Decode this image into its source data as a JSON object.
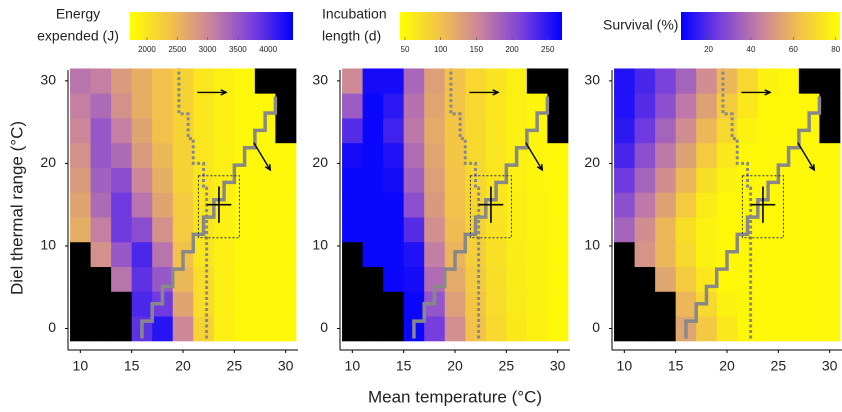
{
  "chart_data": [
    {
      "type": "heatmap",
      "ylabel": "Diel thermal range (°C)",
      "colorbar_label": [
        "Energy",
        "expended (J)"
      ],
      "x": [
        10,
        12,
        14,
        16,
        18,
        20,
        22,
        24,
        26,
        28,
        30
      ],
      "y": [
        0,
        3,
        6,
        9,
        12,
        15,
        18,
        21,
        24,
        27,
        30
      ],
      "z": [
        [
          null,
          null,
          null,
          3900,
          4200,
          3000,
          2200,
          1900,
          1800,
          1800,
          1800
        ],
        [
          null,
          null,
          null,
          4000,
          3800,
          2700,
          2100,
          1900,
          1800,
          1800,
          1800
        ],
        [
          null,
          null,
          3200,
          3900,
          3500,
          2500,
          2100,
          1900,
          1800,
          1800,
          1800
        ],
        [
          null,
          2900,
          3500,
          4000,
          3200,
          2400,
          2000,
          1900,
          1800,
          1800,
          1800
        ],
        [
          2600,
          3100,
          3800,
          3600,
          2900,
          2300,
          2000,
          1900,
          1800,
          1800,
          1800
        ],
        [
          2700,
          3300,
          3800,
          3200,
          2700,
          2300,
          2000,
          1900,
          1800,
          1800,
          1800
        ],
        [
          2800,
          3400,
          3600,
          3000,
          2600,
          2200,
          2000,
          1900,
          1800,
          1800,
          1800
        ],
        [
          2900,
          3500,
          3300,
          2800,
          2500,
          2200,
          2000,
          1900,
          1800,
          1800,
          1800
        ],
        [
          3000,
          3500,
          3100,
          2700,
          2400,
          2200,
          2000,
          1900,
          1800,
          1800,
          null
        ],
        [
          3100,
          3300,
          2900,
          2600,
          2400,
          2200,
          2000,
          1900,
          1800,
          1800,
          null
        ],
        [
          3200,
          3100,
          2800,
          2600,
          2400,
          2200,
          2000,
          1900,
          1800,
          null,
          null
        ]
      ],
      "clim": [
        1720,
        4410
      ],
      "cticks": [
        2000,
        2500,
        3000,
        3500,
        4000
      ],
      "colormap": [
        "#ffff00",
        "#f2c24a",
        "#c882a0",
        "#7a40dc",
        "#0000ff"
      ],
      "missing_color": "#000000",
      "xlim": [
        8.8,
        31.2
      ],
      "ylim": [
        -2.6,
        31.8
      ],
      "xticks": [
        10,
        15,
        20,
        25,
        30
      ],
      "yticks": [
        0,
        10,
        20,
        30
      ]
    },
    {
      "type": "heatmap",
      "xlabel": "Mean temperature (°C)",
      "colorbar_label": [
        "Incubation",
        "length (d)"
      ],
      "x": [
        10,
        12,
        14,
        16,
        18,
        20,
        22,
        24,
        26,
        28,
        30
      ],
      "y": [
        0,
        3,
        6,
        9,
        12,
        15,
        18,
        21,
        24,
        27,
        30
      ],
      "z": [
        [
          null,
          null,
          null,
          265,
          215,
          145,
          100,
          78,
          64,
          56,
          50
        ],
        [
          null,
          null,
          null,
          265,
          195,
          130,
          95,
          76,
          63,
          55,
          50
        ],
        [
          null,
          null,
          265,
          260,
          175,
          120,
          92,
          74,
          62,
          55,
          50
        ],
        [
          null,
          265,
          265,
          255,
          160,
          112,
          88,
          72,
          61,
          55,
          50
        ],
        [
          265,
          265,
          265,
          230,
          145,
          105,
          85,
          70,
          60,
          54,
          50
        ],
        [
          265,
          265,
          265,
          200,
          135,
          100,
          82,
          68,
          60,
          53,
          50
        ],
        [
          265,
          265,
          260,
          185,
          130,
          98,
          80,
          67,
          58,
          52,
          50
        ],
        [
          260,
          265,
          255,
          175,
          125,
          96,
          78,
          66,
          58,
          52,
          50
        ],
        [
          230,
          265,
          240,
          165,
          120,
          95,
          78,
          66,
          58,
          52,
          null
        ],
        [
          190,
          265,
          250,
          170,
          125,
          98,
          80,
          67,
          58,
          52,
          null
        ],
        [
          150,
          260,
          260,
          180,
          130,
          100,
          80,
          68,
          58,
          null,
          null
        ]
      ],
      "clim": [
        43,
        270
      ],
      "cticks": [
        50,
        100,
        150,
        200,
        250
      ],
      "colormap": [
        "#ffff00",
        "#f2c24a",
        "#c882a0",
        "#7a40dc",
        "#0000ff"
      ],
      "missing_color": "#000000",
      "xlim": [
        8.8,
        31.2
      ],
      "ylim": [
        -2.6,
        31.8
      ],
      "xticks": [
        10,
        15,
        20,
        25,
        30
      ],
      "yticks": [
        0,
        10,
        20,
        30
      ]
    },
    {
      "type": "heatmap",
      "colorbar_label": [
        "Survival (%)"
      ],
      "x": [
        10,
        12,
        14,
        16,
        18,
        20,
        22,
        24,
        26,
        28,
        30
      ],
      "y": [
        0,
        3,
        6,
        9,
        12,
        15,
        18,
        21,
        24,
        27,
        30
      ],
      "z": [
        [
          null,
          null,
          null,
          55,
          65,
          75,
          80,
          80,
          80,
          80,
          80
        ],
        [
          null,
          null,
          null,
          60,
          70,
          78,
          80,
          80,
          80,
          80,
          80
        ],
        [
          null,
          null,
          55,
          66,
          75,
          80,
          80,
          80,
          80,
          80,
          80
        ],
        [
          null,
          50,
          60,
          70,
          78,
          80,
          80,
          80,
          80,
          80,
          80
        ],
        [
          36,
          48,
          60,
          72,
          78,
          80,
          80,
          80,
          80,
          80,
          80
        ],
        [
          30,
          42,
          54,
          66,
          76,
          80,
          80,
          80,
          80,
          80,
          80
        ],
        [
          24,
          36,
          48,
          60,
          72,
          78,
          80,
          80,
          80,
          80,
          80
        ],
        [
          18,
          30,
          42,
          54,
          66,
          75,
          80,
          80,
          80,
          80,
          80
        ],
        [
          14,
          24,
          36,
          48,
          60,
          70,
          78,
          80,
          80,
          80,
          null
        ],
        [
          12,
          20,
          30,
          42,
          54,
          66,
          75,
          80,
          80,
          80,
          null
        ],
        [
          12,
          18,
          26,
          36,
          48,
          60,
          70,
          78,
          80,
          null,
          null
        ]
      ],
      "clim": [
        7,
        82
      ],
      "cticks": [
        20,
        40,
        60,
        80
      ],
      "colormap": [
        "#0000ff",
        "#7a40dc",
        "#c882a0",
        "#f2c24a",
        "#ffff00"
      ],
      "missing_color": "#000000",
      "xlim": [
        8.8,
        31.2
      ],
      "ylim": [
        -2.6,
        31.8
      ],
      "xticks": [
        10,
        15,
        20,
        25,
        30
      ],
      "yticks": [
        0,
        10,
        20,
        30
      ]
    }
  ]
}
